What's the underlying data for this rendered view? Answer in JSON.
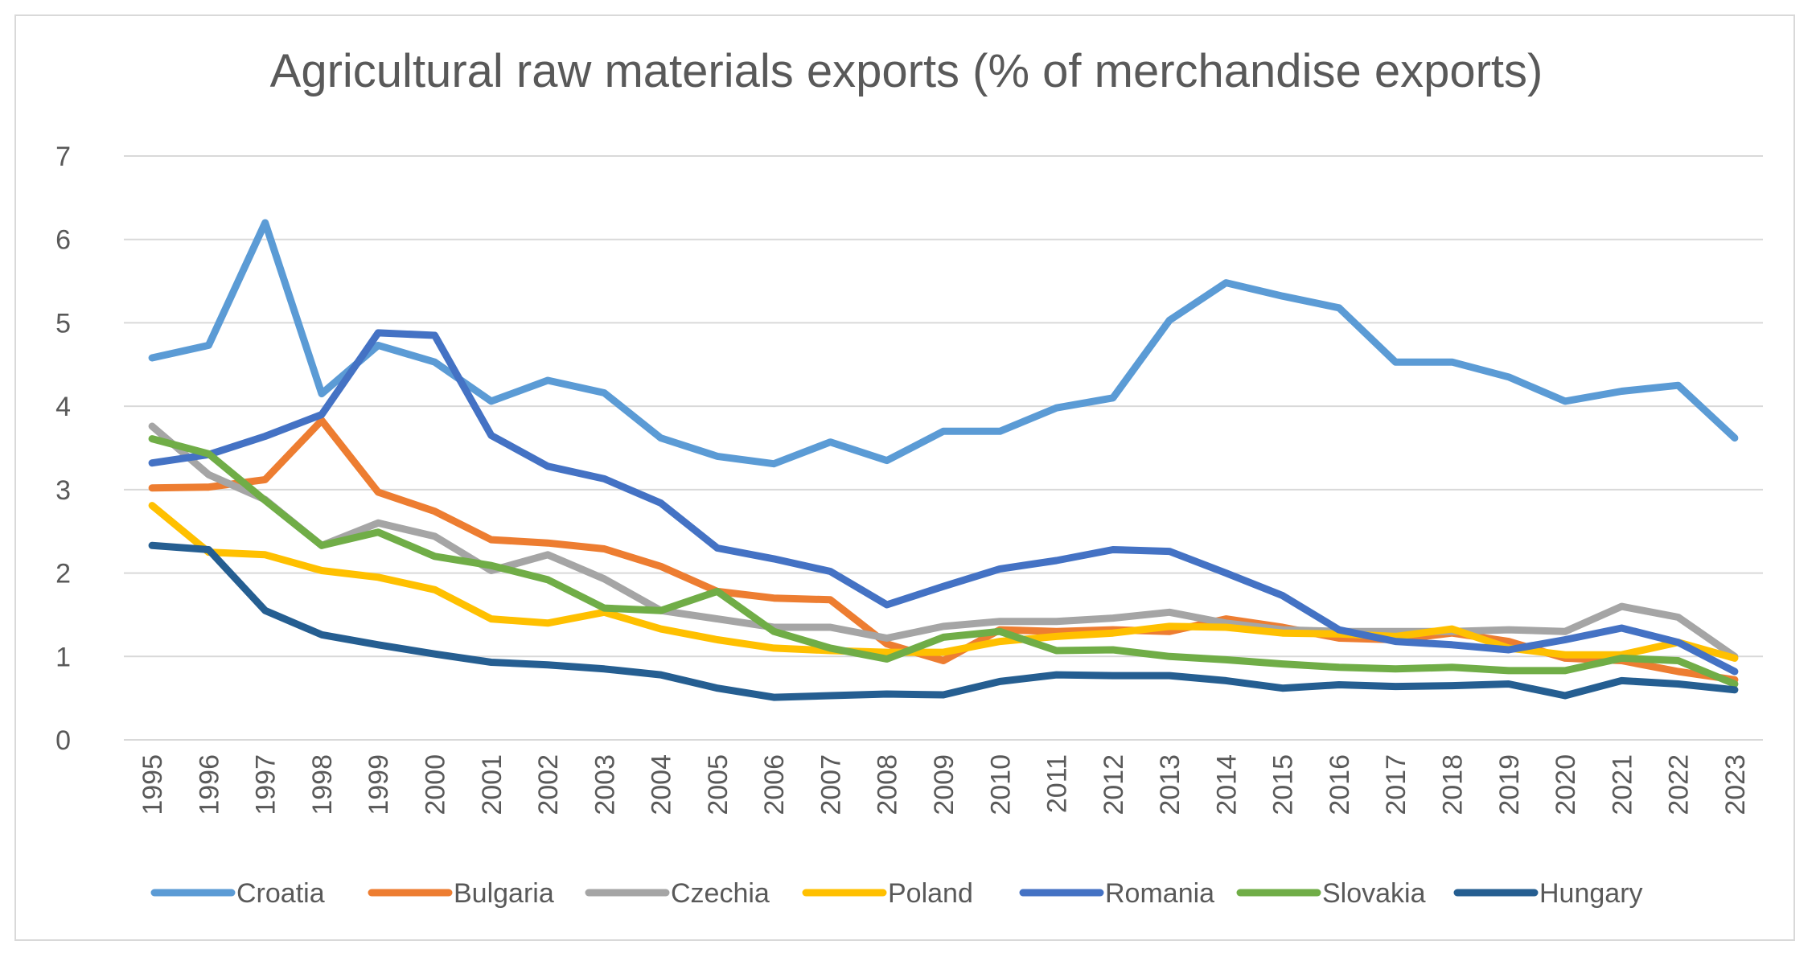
{
  "chart_data": {
    "type": "line",
    "title": "Agricultural raw materials exports (% of merchandise exports)",
    "xlabel": "",
    "ylabel": "",
    "ylim": [
      0,
      7
    ],
    "yticks": [
      "0",
      "1",
      "2",
      "3",
      "4",
      "5",
      "6",
      "7"
    ],
    "grid": true,
    "legend_position": "bottom",
    "x": [
      "1995",
      "1996",
      "1997",
      "1998",
      "1999",
      "2000",
      "2001",
      "2002",
      "2003",
      "2004",
      "2005",
      "2006",
      "2007",
      "2008",
      "2009",
      "2010",
      "2011",
      "2012",
      "2013",
      "2014",
      "2015",
      "2016",
      "2017",
      "2018",
      "2019",
      "2020",
      "2021",
      "2022",
      "2023"
    ],
    "series": [
      {
        "name": "Croatia",
        "color": "#5b9bd5",
        "values": [
          4.58,
          4.73,
          6.2,
          4.15,
          4.73,
          4.53,
          4.06,
          4.31,
          4.16,
          3.62,
          3.4,
          3.31,
          3.57,
          3.35,
          3.7,
          3.7,
          3.98,
          4.1,
          5.03,
          5.48,
          5.32,
          5.18,
          4.53,
          4.53,
          4.35,
          4.06,
          4.18,
          4.25,
          3.62
        ]
      },
      {
        "name": "Bulgaria",
        "color": "#ed7d31",
        "values": [
          3.02,
          3.03,
          3.12,
          3.83,
          2.97,
          2.74,
          2.4,
          2.36,
          2.29,
          2.08,
          1.78,
          1.7,
          1.68,
          1.15,
          0.95,
          1.32,
          1.3,
          1.32,
          1.3,
          1.45,
          1.35,
          1.22,
          1.2,
          1.28,
          1.18,
          0.98,
          0.95,
          0.82,
          0.72
        ]
      },
      {
        "name": "Czechia",
        "color": "#a5a5a5",
        "values": [
          3.76,
          3.18,
          2.88,
          2.33,
          2.6,
          2.44,
          2.03,
          2.22,
          1.93,
          1.55,
          1.45,
          1.35,
          1.35,
          1.22,
          1.36,
          1.42,
          1.42,
          1.46,
          1.53,
          1.4,
          1.32,
          1.3,
          1.3,
          1.3,
          1.32,
          1.3,
          1.6,
          1.47,
          1.0
        ]
      },
      {
        "name": "Poland",
        "color": "#ffc000",
        "values": [
          2.81,
          2.25,
          2.22,
          2.03,
          1.95,
          1.8,
          1.45,
          1.4,
          1.53,
          1.33,
          1.2,
          1.1,
          1.07,
          1.05,
          1.05,
          1.18,
          1.24,
          1.28,
          1.36,
          1.35,
          1.28,
          1.27,
          1.24,
          1.33,
          1.1,
          1.02,
          1.02,
          1.17,
          0.98
        ]
      },
      {
        "name": "Romania",
        "color": "#4472c4",
        "values": [
          3.32,
          3.42,
          3.64,
          3.9,
          4.88,
          4.85,
          3.65,
          3.28,
          3.13,
          2.84,
          2.3,
          2.17,
          2.02,
          1.62,
          1.84,
          2.05,
          2.15,
          2.28,
          2.26,
          2.0,
          1.73,
          1.32,
          1.18,
          1.14,
          1.08,
          1.2,
          1.34,
          1.17,
          0.82
        ]
      },
      {
        "name": "Slovakia",
        "color": "#70ad47",
        "values": [
          3.61,
          3.43,
          2.87,
          2.33,
          2.49,
          2.2,
          2.09,
          1.92,
          1.58,
          1.55,
          1.78,
          1.3,
          1.1,
          0.97,
          1.23,
          1.3,
          1.07,
          1.08,
          1.0,
          0.96,
          0.91,
          0.87,
          0.85,
          0.87,
          0.83,
          0.83,
          0.98,
          0.95,
          0.67
        ]
      },
      {
        "name": "Hungary",
        "color": "#255e91",
        "values": [
          2.33,
          2.28,
          1.55,
          1.26,
          1.14,
          1.03,
          0.93,
          0.9,
          0.85,
          0.78,
          0.62,
          0.51,
          0.53,
          0.55,
          0.54,
          0.7,
          0.78,
          0.77,
          0.77,
          0.71,
          0.62,
          0.66,
          0.64,
          0.65,
          0.67,
          0.53,
          0.71,
          0.67,
          0.6
        ]
      }
    ]
  }
}
